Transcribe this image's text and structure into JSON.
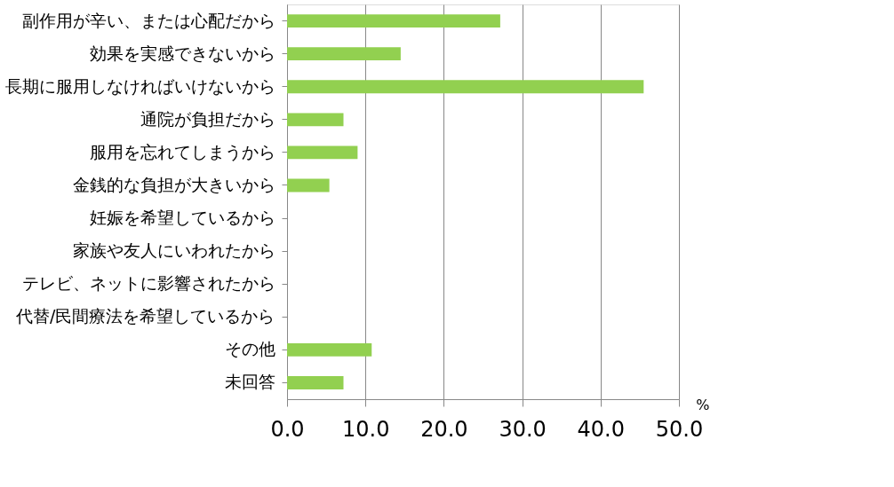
{
  "chart_data": {
    "type": "bar",
    "orientation": "horizontal",
    "xlabel": "%",
    "categories": [
      "副作用が辛い、または心配だから",
      "効果を実感できないから",
      "長期に服用しなければいけないから",
      "通院が負担だから",
      "服用を忘れてしまうから",
      "金銭的な負担が大きいから",
      "妊娠を希望しているから",
      "家族や友人にいわれたから",
      "テレビ、ネットに影響されたから",
      "代替/民間療法を希望しているから",
      "その他",
      "未回答"
    ],
    "values": [
      27.2,
      14.5,
      45.5,
      7.2,
      9.0,
      5.4,
      0,
      0,
      0,
      0,
      10.8,
      7.2
    ],
    "color": "#92d050",
    "xlim": [
      0,
      50
    ],
    "xticks": [
      {
        "value": 0,
        "label": "0.0"
      },
      {
        "value": 10,
        "label": "10.0"
      },
      {
        "value": 20,
        "label": "20.0"
      },
      {
        "value": 30,
        "label": "30.0"
      },
      {
        "value": 40,
        "label": "40.0"
      },
      {
        "value": 50,
        "label": "50.0"
      }
    ],
    "grid": "x"
  }
}
